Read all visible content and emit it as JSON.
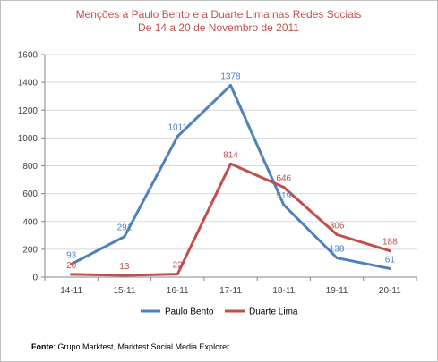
{
  "chart_data": {
    "type": "line",
    "title": "Menções a Paulo Bento e a Duarte Lima nas Redes Sociais",
    "subtitle": "De 14 a 20 de Novembro de 2011",
    "categories": [
      "14-11",
      "15-11",
      "16-11",
      "17-11",
      "18-11",
      "19-11",
      "20-11"
    ],
    "series": [
      {
        "name": "Paulo Bento",
        "values": [
          93,
          291,
          1011,
          1378,
          519,
          138,
          61
        ],
        "color": "#4f81bd",
        "label_color": "#4f81bd"
      },
      {
        "name": "Duarte Lima",
        "values": [
          20,
          13,
          22,
          814,
          646,
          306,
          188
        ],
        "color": "#c0504d",
        "label_color": "#c0504d"
      }
    ],
    "ylim": [
      0,
      1600
    ],
    "yticks": [
      0,
      200,
      400,
      600,
      800,
      1000,
      1200,
      1400,
      1600
    ],
    "grid": true,
    "legend_position": "bottom",
    "axis_color": "#868686",
    "grid_color": "#d9d9d9"
  },
  "source": {
    "label": "Fonte",
    "text": ": Grupo Marktest, Marktest Social Media Explorer"
  }
}
